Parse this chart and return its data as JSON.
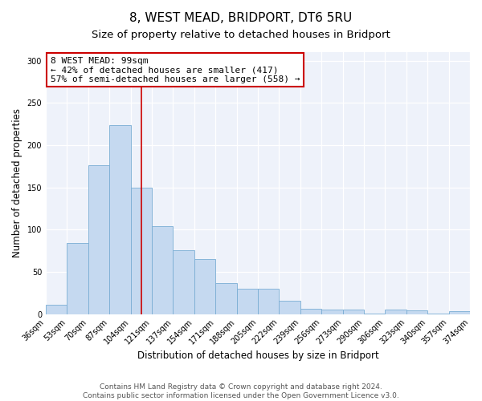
{
  "title": "8, WEST MEAD, BRIDPORT, DT6 5RU",
  "subtitle": "Size of property relative to detached houses in Bridport",
  "xlabel": "Distribution of detached houses by size in Bridport",
  "ylabel": "Number of detached properties",
  "bar_values": [
    11,
    84,
    176,
    224,
    150,
    104,
    76,
    65,
    37,
    30,
    30,
    16,
    6,
    5,
    5,
    1,
    5,
    4,
    1,
    3
  ],
  "bin_labels": [
    "36sqm",
    "53sqm",
    "70sqm",
    "87sqm",
    "104sqm",
    "121sqm",
    "137sqm",
    "154sqm",
    "171sqm",
    "188sqm",
    "205sqm",
    "222sqm",
    "239sqm",
    "256sqm",
    "273sqm",
    "290sqm",
    "306sqm",
    "323sqm",
    "340sqm",
    "357sqm",
    "374sqm"
  ],
  "bar_color": "#c5d9f0",
  "bar_edge_color": "#7aadd4",
  "bar_edge_width": 0.6,
  "vline_x": 4.5,
  "vline_color": "#cc0000",
  "annotation_box_text": "8 WEST MEAD: 99sqm\n← 42% of detached houses are smaller (417)\n57% of semi-detached houses are larger (558) →",
  "box_edge_color": "#cc0000",
  "ylim": [
    0,
    310
  ],
  "yticks": [
    0,
    50,
    100,
    150,
    200,
    250,
    300
  ],
  "bg_color": "#eef2fa",
  "title_fontsize": 11,
  "subtitle_fontsize": 9.5,
  "tick_fontsize": 7,
  "ylabel_fontsize": 8.5,
  "xlabel_fontsize": 8.5,
  "ann_fontsize": 8,
  "footer_fontsize": 6.5
}
